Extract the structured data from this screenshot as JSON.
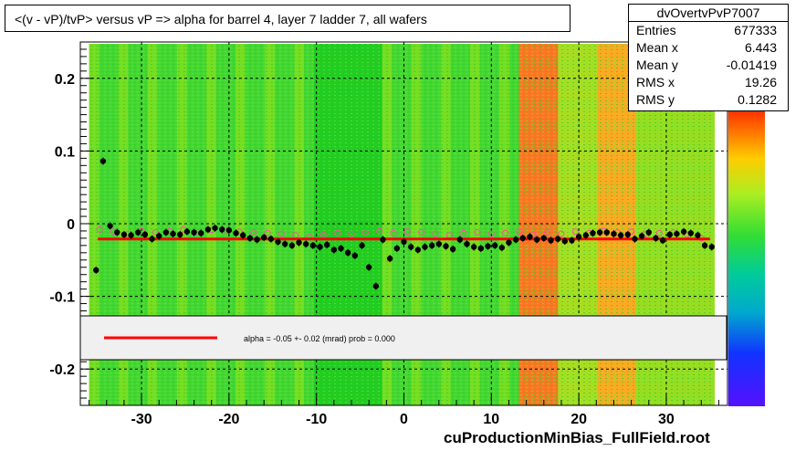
{
  "title": "<(v - vP)/tvP> versus   vP => alpha for barrel 4, layer 7 ladder 7, all wafers",
  "stats": {
    "name": "dvOvertvPvP7007",
    "rows": [
      {
        "key": "Entries",
        "value": "677333"
      },
      {
        "key": "Mean x",
        "value": "6.443"
      },
      {
        "key": "Mean y",
        "value": "-0.01419"
      },
      {
        "key": "RMS x",
        "value": "19.26"
      },
      {
        "key": "RMS y",
        "value": "0.1282"
      }
    ]
  },
  "legend_text": "alpha =   -0.05 +-  0.02 (mrad) prob = 0.000",
  "footer": "cuProductionMinBias_FullField.root",
  "colors": {
    "fit_line": "#ff0000",
    "black_markers": "#000000",
    "open_markers": "#ff4da6",
    "heat_background": "#33dd33"
  },
  "chart_data": {
    "type": "scatter",
    "xlim": [
      -37,
      37
    ],
    "ylim": [
      -0.25,
      0.25
    ],
    "x_ticks": [
      -30,
      -20,
      -10,
      0,
      10,
      20,
      30
    ],
    "y_ticks": [
      0.2,
      0.1,
      0,
      -0.1,
      -0.2
    ],
    "x_tick_labels": [
      "-30",
      "-20",
      "-10",
      "0",
      "10",
      "20",
      "30"
    ],
    "y_tick_labels": [
      "0.2",
      "0.1",
      "0",
      "-0.1",
      "-0.2"
    ],
    "grid": true,
    "fit_line": {
      "x": [
        -35,
        35
      ],
      "y": [
        -0.021,
        -0.021
      ]
    },
    "series_mean": {
      "x": [
        -35.2,
        -34.4,
        -33.6,
        -32.8,
        -32,
        -31.2,
        -30.4,
        -29.6,
        -28.8,
        -28,
        -27.2,
        -26.4,
        -25.6,
        -24.8,
        -24,
        -23.2,
        -22.4,
        -21.6,
        -20.8,
        -20,
        -19.2,
        -18.4,
        -17.6,
        -16.8,
        -16,
        -15.2,
        -14.4,
        -13.6,
        -12.8,
        -12,
        -11.2,
        -10.4,
        -9.6,
        -8.8,
        -8,
        -7.2,
        -6.4,
        -5.6,
        -4.8,
        -4,
        -3.2,
        -2.4,
        -1.6,
        -0.8,
        0,
        0.8,
        1.6,
        2.4,
        3.2,
        4,
        4.8,
        5.6,
        6.4,
        7.2,
        8,
        8.8,
        9.6,
        10.4,
        11.2,
        12,
        12.8,
        13.6,
        14.4,
        15.2,
        16,
        16.8,
        17.6,
        18.4,
        19.2,
        20,
        20.8,
        21.6,
        22.4,
        23.2,
        24,
        24.8,
        25.6,
        26.4,
        27.2,
        28,
        28.8,
        29.6,
        30.4,
        31.2,
        32,
        32.8,
        33.6,
        34.4,
        35.2
      ],
      "y": [
        -0.064,
        0.086,
        -0.003,
        -0.012,
        -0.015,
        -0.016,
        -0.012,
        -0.015,
        -0.021,
        -0.017,
        -0.012,
        -0.014,
        -0.015,
        -0.011,
        -0.012,
        -0.013,
        -0.008,
        -0.006,
        -0.008,
        -0.009,
        -0.013,
        -0.016,
        -0.02,
        -0.022,
        -0.019,
        -0.021,
        -0.025,
        -0.028,
        -0.03,
        -0.026,
        -0.028,
        -0.03,
        -0.032,
        -0.029,
        -0.036,
        -0.034,
        -0.04,
        -0.044,
        -0.03,
        -0.06,
        -0.086,
        -0.022,
        -0.048,
        -0.034,
        -0.025,
        -0.032,
        -0.036,
        -0.032,
        -0.03,
        -0.028,
        -0.031,
        -0.035,
        -0.022,
        -0.028,
        -0.032,
        -0.034,
        -0.031,
        -0.03,
        -0.033,
        -0.026,
        -0.022,
        -0.02,
        -0.018,
        -0.022,
        -0.02,
        -0.023,
        -0.021,
        -0.024,
        -0.023,
        -0.018,
        -0.016,
        -0.013,
        -0.012,
        -0.012,
        -0.014,
        -0.016,
        -0.015,
        -0.021,
        -0.017,
        -0.012,
        -0.02,
        -0.023,
        -0.015,
        -0.014,
        -0.011,
        -0.013,
        -0.016,
        -0.03,
        -0.032
      ]
    },
    "series_open": {
      "x": [
        -34.8,
        -33.2,
        -31.6,
        -30,
        -28.4,
        -26.8,
        -25.2,
        -23.6,
        -22,
        -20.4,
        -18.8,
        -17.2,
        -15.6,
        -14,
        -12.4,
        -10.8,
        -9.2,
        -7.6,
        -6,
        -4.4,
        -2.8,
        -1.2,
        0.4,
        2,
        3.6,
        5.2,
        6.8,
        8.4,
        10,
        11.6,
        13.2,
        14.8,
        16.4,
        18,
        19.6,
        21.2,
        22.8,
        24.4,
        26,
        27.6,
        29.2,
        30.8,
        32.4,
        34
      ],
      "y": [
        -0.008,
        -0.011,
        -0.014,
        -0.01,
        -0.012,
        -0.01,
        -0.008,
        -0.012,
        -0.009,
        -0.01,
        -0.011,
        -0.012,
        -0.013,
        -0.014,
        -0.016,
        -0.018,
        -0.015,
        -0.013,
        -0.014,
        -0.012,
        -0.01,
        -0.013,
        -0.011,
        -0.012,
        -0.014,
        -0.016,
        -0.013,
        -0.012,
        -0.014,
        -0.013,
        -0.011,
        -0.015,
        -0.012,
        -0.014,
        -0.011,
        -0.013,
        -0.01,
        -0.012,
        -0.011,
        -0.014,
        -0.013,
        -0.012,
        -0.015,
        -0.02
      ]
    }
  }
}
